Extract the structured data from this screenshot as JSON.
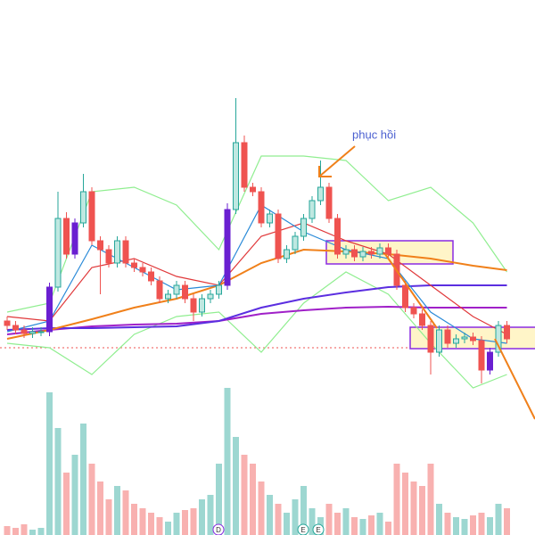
{
  "chart_data": {
    "type": "candlestick",
    "annotation": "phục hồi",
    "events": [
      "D",
      "E",
      "E"
    ],
    "up_color": "#26a69a",
    "down_color": "#ef5350",
    "highlight_color": "#6a1fd1",
    "highlight": [
      5,
      8,
      26,
      57
    ],
    "ylim": [
      0,
      600
    ],
    "open": [
      240,
      235,
      230,
      226,
      228,
      228,
      278,
      355,
      315,
      350,
      385,
      330,
      320,
      305,
      330,
      305,
      300,
      295,
      285,
      265,
      270,
      280,
      265,
      250,
      265,
      270,
      280,
      365,
      440,
      390,
      385,
      350,
      360,
      310,
      320,
      335,
      355,
      375,
      390,
      355,
      315,
      320,
      312,
      318,
      315,
      322,
      315,
      280,
      255,
      248,
      235,
      205,
      230,
      215,
      220,
      222,
      218,
      185,
      205,
      235
    ],
    "high": [
      245,
      240,
      235,
      233,
      233,
      283,
      385,
      362,
      355,
      405,
      390,
      335,
      325,
      335,
      335,
      310,
      305,
      300,
      290,
      275,
      285,
      285,
      270,
      270,
      275,
      285,
      372,
      490,
      448,
      395,
      390,
      365,
      365,
      325,
      340,
      360,
      380,
      420,
      395,
      360,
      325,
      325,
      323,
      323,
      327,
      327,
      320,
      285,
      260,
      253,
      240,
      235,
      235,
      225,
      227,
      227,
      223,
      210,
      240,
      240
    ],
    "low": [
      230,
      225,
      221,
      221,
      223,
      223,
      273,
      310,
      310,
      345,
      325,
      270,
      300,
      300,
      300,
      295,
      290,
      280,
      260,
      260,
      265,
      260,
      240,
      245,
      260,
      265,
      275,
      360,
      385,
      380,
      345,
      345,
      305,
      305,
      315,
      330,
      350,
      370,
      350,
      310,
      310,
      307,
      307,
      310,
      310,
      310,
      275,
      250,
      243,
      230,
      180,
      200,
      210,
      210,
      215,
      213,
      170,
      180,
      200,
      215
    ],
    "close": [
      235,
      230,
      226,
      228,
      228,
      278,
      355,
      315,
      350,
      385,
      330,
      320,
      305,
      330,
      305,
      300,
      295,
      285,
      265,
      270,
      280,
      265,
      250,
      265,
      270,
      280,
      365,
      440,
      390,
      385,
      350,
      360,
      310,
      320,
      335,
      355,
      375,
      390,
      355,
      315,
      320,
      312,
      318,
      315,
      322,
      315,
      280,
      255,
      248,
      235,
      205,
      230,
      215,
      220,
      222,
      218,
      185,
      205,
      235,
      220
    ],
    "volume": [
      10,
      8,
      12,
      6,
      8,
      160,
      120,
      70,
      90,
      125,
      80,
      60,
      40,
      55,
      50,
      35,
      30,
      25,
      20,
      15,
      25,
      28,
      30,
      40,
      45,
      80,
      165,
      110,
      90,
      80,
      60,
      45,
      35,
      25,
      40,
      55,
      30,
      20,
      35,
      25,
      30,
      20,
      18,
      22,
      25,
      15,
      80,
      70,
      60,
      55,
      80,
      35,
      25,
      20,
      18,
      22,
      25,
      20,
      35,
      30
    ],
    "lines": [
      {
        "color": "#90ee90",
        "x": [
          0,
          5,
          10,
          15,
          20,
          25,
          30,
          35,
          40,
          45,
          50,
          55,
          59
        ],
        "values": [
          250,
          260,
          385,
          390,
          370,
          320,
          425,
          425,
          420,
          375,
          390,
          350,
          295
        ]
      },
      {
        "color": "#90ee90",
        "x": [
          0,
          5,
          10,
          15,
          20,
          25,
          30,
          35,
          40,
          45,
          50,
          55,
          59
        ],
        "values": [
          215,
          210,
          180,
          225,
          245,
          250,
          205,
          260,
          295,
          270,
          215,
          165,
          180
        ]
      },
      {
        "color": "#a020c8",
        "x": [
          0,
          5,
          10,
          15,
          20,
          25,
          30,
          35,
          40,
          45,
          50,
          55,
          59
        ],
        "values": [
          225,
          230,
          234,
          236,
          237,
          240,
          248,
          252,
          255,
          256,
          255,
          255,
          255
        ]
      },
      {
        "color": "#5b2ee0",
        "x": [
          0,
          5,
          10,
          15,
          20,
          25,
          30,
          35,
          40,
          45,
          50,
          55,
          59
        ],
        "values": [
          230,
          232,
          232,
          233,
          234,
          240,
          255,
          265,
          272,
          278,
          280,
          280,
          280
        ]
      },
      {
        "color": "#f0801a",
        "x": [
          0,
          5,
          10,
          15,
          20,
          25,
          30,
          35,
          40,
          45,
          50,
          55,
          59
        ],
        "values": [
          220,
          230,
          242,
          255,
          265,
          280,
          305,
          320,
          318,
          315,
          310,
          302,
          297
        ]
      },
      {
        "color": "#e0383a",
        "x": [
          0,
          5,
          10,
          15,
          20,
          25,
          30,
          35,
          40,
          45,
          50,
          55,
          59
        ],
        "values": [
          245,
          240,
          300,
          310,
          290,
          280,
          335,
          350,
          330,
          315,
          280,
          245,
          225
        ]
      },
      {
        "color": "#2a8ad8",
        "x": [
          0,
          5,
          10,
          15,
          20,
          25,
          30,
          35,
          40,
          45,
          50,
          55,
          59
        ],
        "values": [
          228,
          240,
          325,
          300,
          275,
          280,
          370,
          340,
          320,
          310,
          250,
          220,
          215
        ]
      }
    ]
  }
}
